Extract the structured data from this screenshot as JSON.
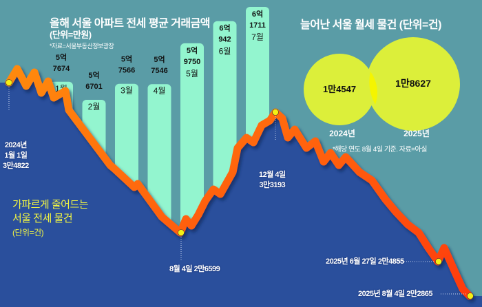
{
  "colors": {
    "background": "#5a9ca6",
    "area": "#2a4f9c",
    "line": "#ff5a14",
    "bar": "#93f5cf",
    "circle": "#dcef3a",
    "marker": "#f5f014"
  },
  "bar_title": "올해 서울 아파트 전세 평균 거래금액",
  "bar_unit": "(단위=만원)",
  "bar_source": "*자료=서울부동산정보광장",
  "venn_title": "늘어난 서울 월세 물건 (단위=건)",
  "venn_note": "*해당 연도 8월 4일 기준. 자료=아실",
  "line_title": [
    "가파르게 줄어드는",
    "서울 전세 물건",
    "(단위=건)"
  ],
  "chart_data": [
    {
      "type": "bar",
      "title": "올해 서울 아파트 전세 평균 거래금액",
      "unit": "만원",
      "categories": [
        "1월",
        "2월",
        "3월",
        "4월",
        "5월",
        "6월",
        "7월"
      ],
      "values": [
        57674,
        56701,
        57566,
        57546,
        59750,
        60942,
        61711
      ],
      "labels": [
        [
          "5억",
          "7674"
        ],
        [
          "5억",
          "6701"
        ],
        [
          "5억",
          "7566"
        ],
        [
          "5억",
          "7546"
        ],
        [
          "5억",
          "9750"
        ],
        [
          "6억",
          "942"
        ],
        [
          "6억",
          "1711"
        ]
      ]
    },
    {
      "type": "area",
      "title": "가파르게 줄어드는 서울 전세 물건",
      "unit": "건",
      "points": [
        {
          "date": "2024-01-01",
          "value": 34822,
          "label": [
            "2024년",
            "1월 1일",
            "3만4822"
          ]
        },
        {
          "date": "2024-08-04",
          "value": 26599,
          "label": [
            "8월 4일 2만6599"
          ]
        },
        {
          "date": "2024-12-04",
          "value": 33193,
          "label": [
            "12월 4일",
            "3만3193"
          ]
        },
        {
          "date": "2025-06-27",
          "value": 24855,
          "label": [
            "2025년 6월 27일 2만4855"
          ]
        },
        {
          "date": "2025-08-04",
          "value": 22865,
          "label": [
            "2025년 8월 4일 2만2865"
          ]
        }
      ]
    },
    {
      "type": "venn",
      "title": "늘어난 서울 월세 물건",
      "unit": "건",
      "categories": [
        "2024년",
        "2025년"
      ],
      "values": [
        14547,
        18627
      ],
      "labels": [
        "1만4547",
        "1만8627"
      ]
    }
  ]
}
